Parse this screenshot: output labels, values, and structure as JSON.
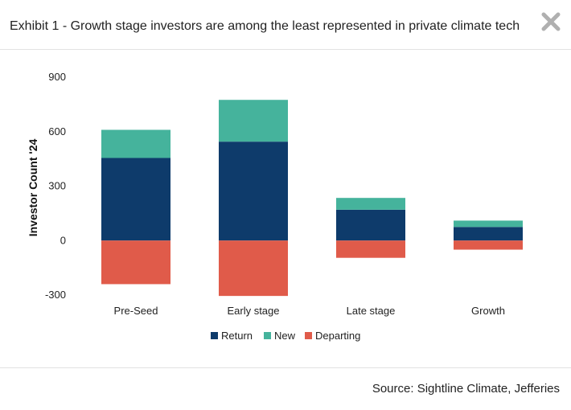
{
  "header": {
    "title": "Exhibit 1 - Growth stage investors are among the least represented in private climate tech",
    "close_icon": "close-x-icon"
  },
  "footer": {
    "source": "Source: Sightline Climate, Jefferies"
  },
  "colors": {
    "Return": "#0e3b6b",
    "New": "#45b39c",
    "Departing": "#e05b4a",
    "close": "#b0b0b0"
  },
  "chart_data": {
    "type": "bar",
    "stacked": true,
    "title": "",
    "xlabel": "",
    "ylabel": "Investor Count '24",
    "ylim": [
      -300,
      900
    ],
    "yticks": [
      -300,
      0,
      300,
      600,
      900
    ],
    "grid": false,
    "legend_position": "bottom",
    "categories": [
      "Pre-Seed",
      "Early stage",
      "Late stage",
      "Growth"
    ],
    "series": [
      {
        "name": "Return",
        "values": [
          455,
          545,
          170,
          75
        ]
      },
      {
        "name": "New",
        "values": [
          155,
          230,
          65,
          35
        ]
      },
      {
        "name": "Departing",
        "values": [
          -240,
          -305,
          -95,
          -50
        ]
      }
    ]
  }
}
